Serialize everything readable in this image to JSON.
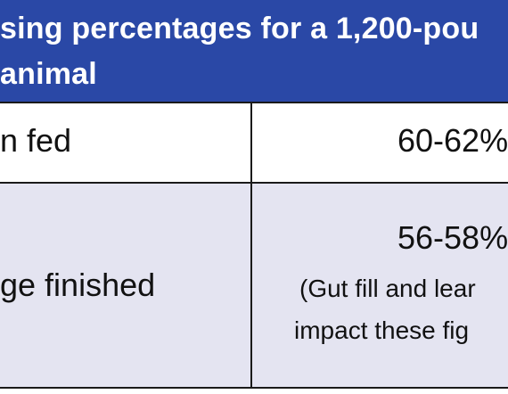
{
  "table": {
    "header": {
      "line1": "sing percentages for a 1,200-pou",
      "line2": "animal"
    },
    "rows": [
      {
        "label": "n fed",
        "value": "60-62%"
      },
      {
        "label": "ge finished",
        "value": "56-58%",
        "note_line1": "(Gut fill and lear",
        "note_line2": "impact these fig"
      }
    ]
  },
  "colors": {
    "header_bg": "#2a48a6",
    "row_alt_bg": "#e4e4f1",
    "border": "#1a1a1a"
  }
}
